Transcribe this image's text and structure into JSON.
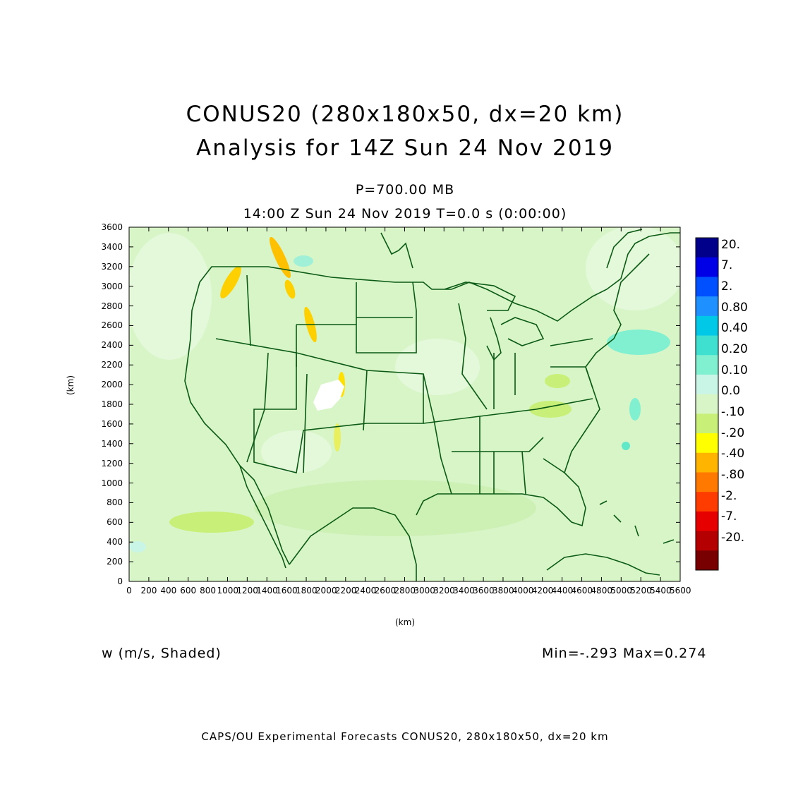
{
  "header": {
    "title_line1": "CONUS20 (280x180x50, dx=20 km)",
    "title_line2": "Analysis for 14Z Sun 24 Nov 2019",
    "level": "P=700.00 MB",
    "time": "14:00 Z Sun 24 Nov 2019    T=0.0 s (0:00:00)"
  },
  "axes": {
    "x_label": "(km)",
    "y_label": "(km)",
    "x_ticks": [
      "0",
      "200",
      "400",
      "600",
      "800",
      "1000",
      "1200",
      "1400",
      "1600",
      "1800",
      "2000",
      "2200",
      "2400",
      "2600",
      "2800",
      "3000",
      "3200",
      "3400",
      "3600",
      "3800",
      "4000",
      "4200",
      "4400",
      "4600",
      "4800",
      "5000",
      "5200",
      "5400",
      "5600"
    ],
    "y_ticks": [
      "0",
      "200",
      "400",
      "600",
      "800",
      "1000",
      "1200",
      "1400",
      "1600",
      "1800",
      "2000",
      "2200",
      "2400",
      "2600",
      "2800",
      "3000",
      "3200",
      "3400",
      "3600"
    ],
    "x_range": [
      0,
      5600
    ],
    "y_range": [
      0,
      3600
    ]
  },
  "colorbar": {
    "labels": [
      "20.",
      "7.",
      "2.",
      "0.80",
      "0.40",
      "0.20",
      "0.10",
      "0.0",
      "-.10",
      "-.20",
      "-.40",
      "-.80",
      "-2.",
      "-7.",
      "-20."
    ],
    "colors": [
      "#00008b",
      "#0000e6",
      "#0050ff",
      "#1e90ff",
      "#00c8e6",
      "#40e0d0",
      "#80f0d0",
      "#c8f5e6",
      "#d8f5c8",
      "#c8f078",
      "#ffff00",
      "#ffb400",
      "#ff7800",
      "#ff3c00",
      "#e60000",
      "#b40000",
      "#780000"
    ]
  },
  "field": {
    "variable": "w (m/s, Shaded)",
    "minmax": "Min=-.293  Max=0.274",
    "background_color": "#d8f5c8",
    "boundary_color": "#0a5a14"
  },
  "footer": "CAPS/OU Experimental Forecasts  CONUS20, 280x180x50, dx=20 km"
}
